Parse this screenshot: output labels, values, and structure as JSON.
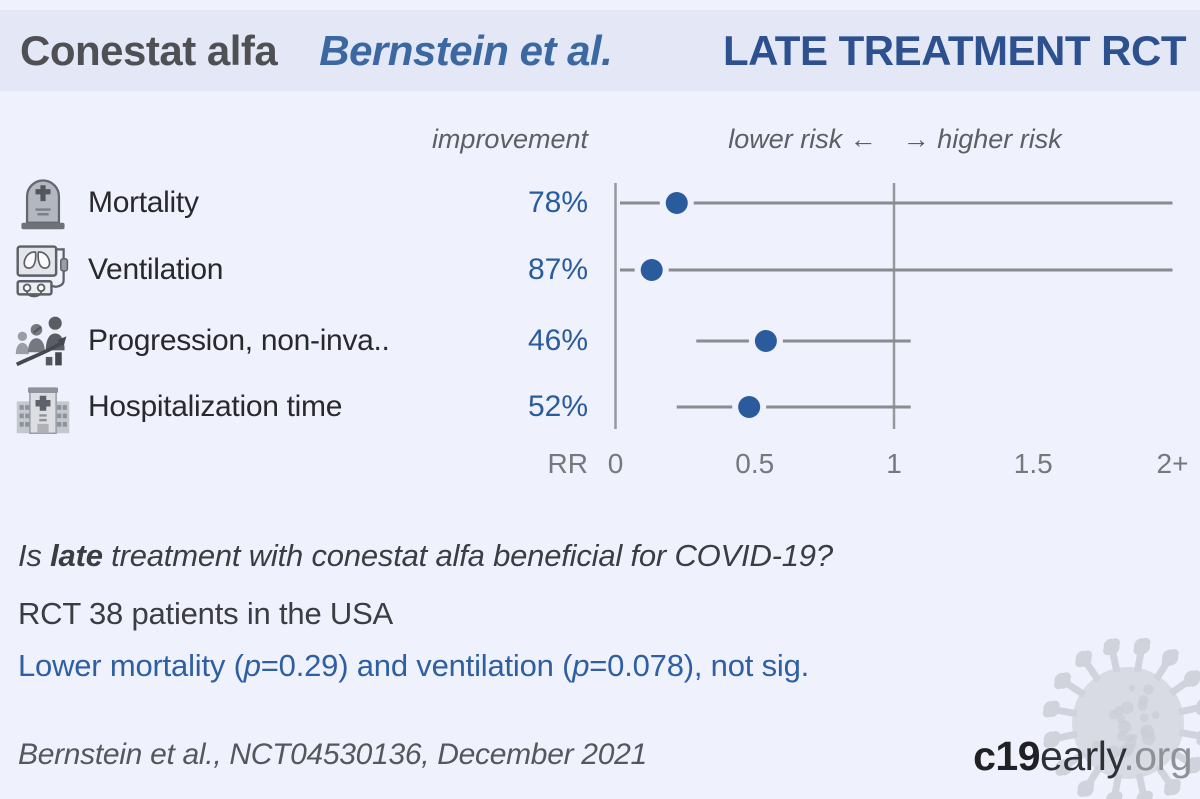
{
  "header": {
    "drug": "Conestat alfa",
    "authors": "Bernstein et al.",
    "study_type": "LATE TREATMENT RCT"
  },
  "chart_data": {
    "type": "forest",
    "title": "Conestat alfa Bernstein et al. LATE TREATMENT RCT",
    "improvement_column_label": "improvement",
    "risk_header_left": "lower risk ←",
    "risk_header_right": "→ higher risk",
    "rows": [
      {
        "icon": "gravestone-icon",
        "label": "Mortality",
        "improvement": "78%",
        "rr": 0.22,
        "ci_lo": 0.016,
        "ci_hi": 2.0,
        "ci_hi_clipped": true
      },
      {
        "icon": "ventilator-icon",
        "label": "Ventilation",
        "improvement": "87%",
        "rr": 0.13,
        "ci_lo": 0.016,
        "ci_hi": 2.0,
        "ci_hi_clipped": true
      },
      {
        "icon": "progression-icon",
        "label": "Progression, non-inva..",
        "improvement": "46%",
        "rr": 0.54,
        "ci_lo": 0.29,
        "ci_hi": 1.06,
        "ci_hi_clipped": false
      },
      {
        "icon": "hospital-icon",
        "label": "Hospitalization time",
        "improvement": "52%",
        "rr": 0.48,
        "ci_lo": 0.22,
        "ci_hi": 1.06,
        "ci_hi_clipped": false
      }
    ],
    "x_axis": {
      "label": "RR",
      "ticks": [
        "0",
        "0.5",
        "1",
        "1.5",
        "2+"
      ],
      "tick_values": [
        0,
        0.5,
        1,
        1.5,
        2
      ],
      "min": 0,
      "max": 2,
      "reference_line": 1,
      "grid": false
    },
    "legend_position": "none",
    "dot_color": "#2a5c9d",
    "line_color": "#8a8c91"
  },
  "summary": {
    "question_prefix": "Is ",
    "question_bold": "late",
    "question_suffix": " treatment with conestat alfa beneficial for COVID-19?",
    "population": "RCT 38 patients in the USA",
    "result_parts": [
      "Lower mortality (",
      "p",
      "=0.29) and ventilation (",
      "p",
      "=0.078), not sig."
    ]
  },
  "footer": {
    "citation": "Bernstein et al., NCT04530136, December 2021",
    "site_bold": "c19",
    "site_mid": "early",
    "site_suffix": ".org"
  },
  "colors": {
    "background": "#eff1fc",
    "header_band": "#e3e7f6",
    "accent_blue": "#2a5c9d",
    "result_blue": "#2e5fa3",
    "authors_blue": "#3c68a2",
    "study_navy": "#2c518e",
    "line_gray": "#8a8c91",
    "watermark_gray": "#ced0d9"
  }
}
